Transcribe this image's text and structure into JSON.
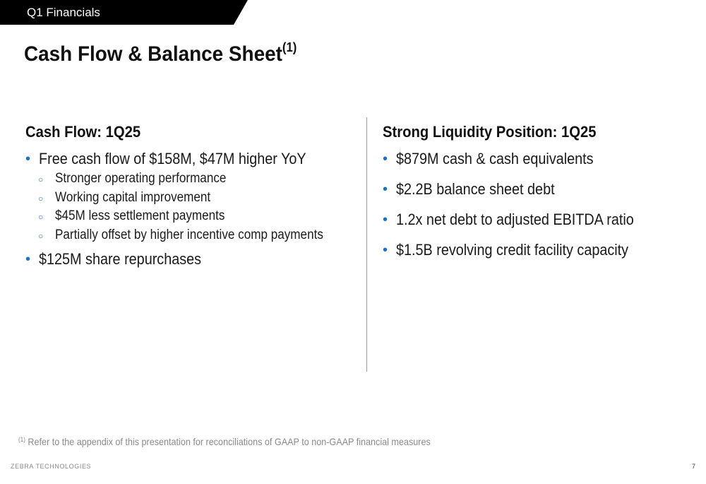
{
  "section_tab": "Q1 Financials",
  "title": {
    "text": "Cash Flow & Balance Sheet",
    "superscript": "(1)"
  },
  "left_column": {
    "heading": "Cash Flow: 1Q25",
    "bullets": [
      {
        "text": "Free cash flow of $158M, $47M higher YoY",
        "sub": [
          "Stronger operating performance",
          "Working capital improvement",
          "$45M less settlement payments",
          "Partially offset by higher incentive comp payments"
        ]
      },
      {
        "text": "$125M share repurchases"
      }
    ]
  },
  "right_column": {
    "heading": "Strong Liquidity Position: 1Q25",
    "bullets": [
      "$879M cash & cash equivalents",
      "$2.2B balance sheet debt",
      "1.2x net debt to adjusted EBITDA ratio",
      "$1.5B revolving credit facility capacity"
    ]
  },
  "footnote": {
    "marker": "(1)",
    "text": "Refer to the appendix of this presentation for reconciliations of GAAP to non-GAAP financial measures"
  },
  "footer": {
    "company": "ZEBRA TECHNOLOGIES",
    "page_number": "7"
  },
  "colors": {
    "bullet_accent": "#1e6fc4",
    "tab_background": "#000000"
  }
}
